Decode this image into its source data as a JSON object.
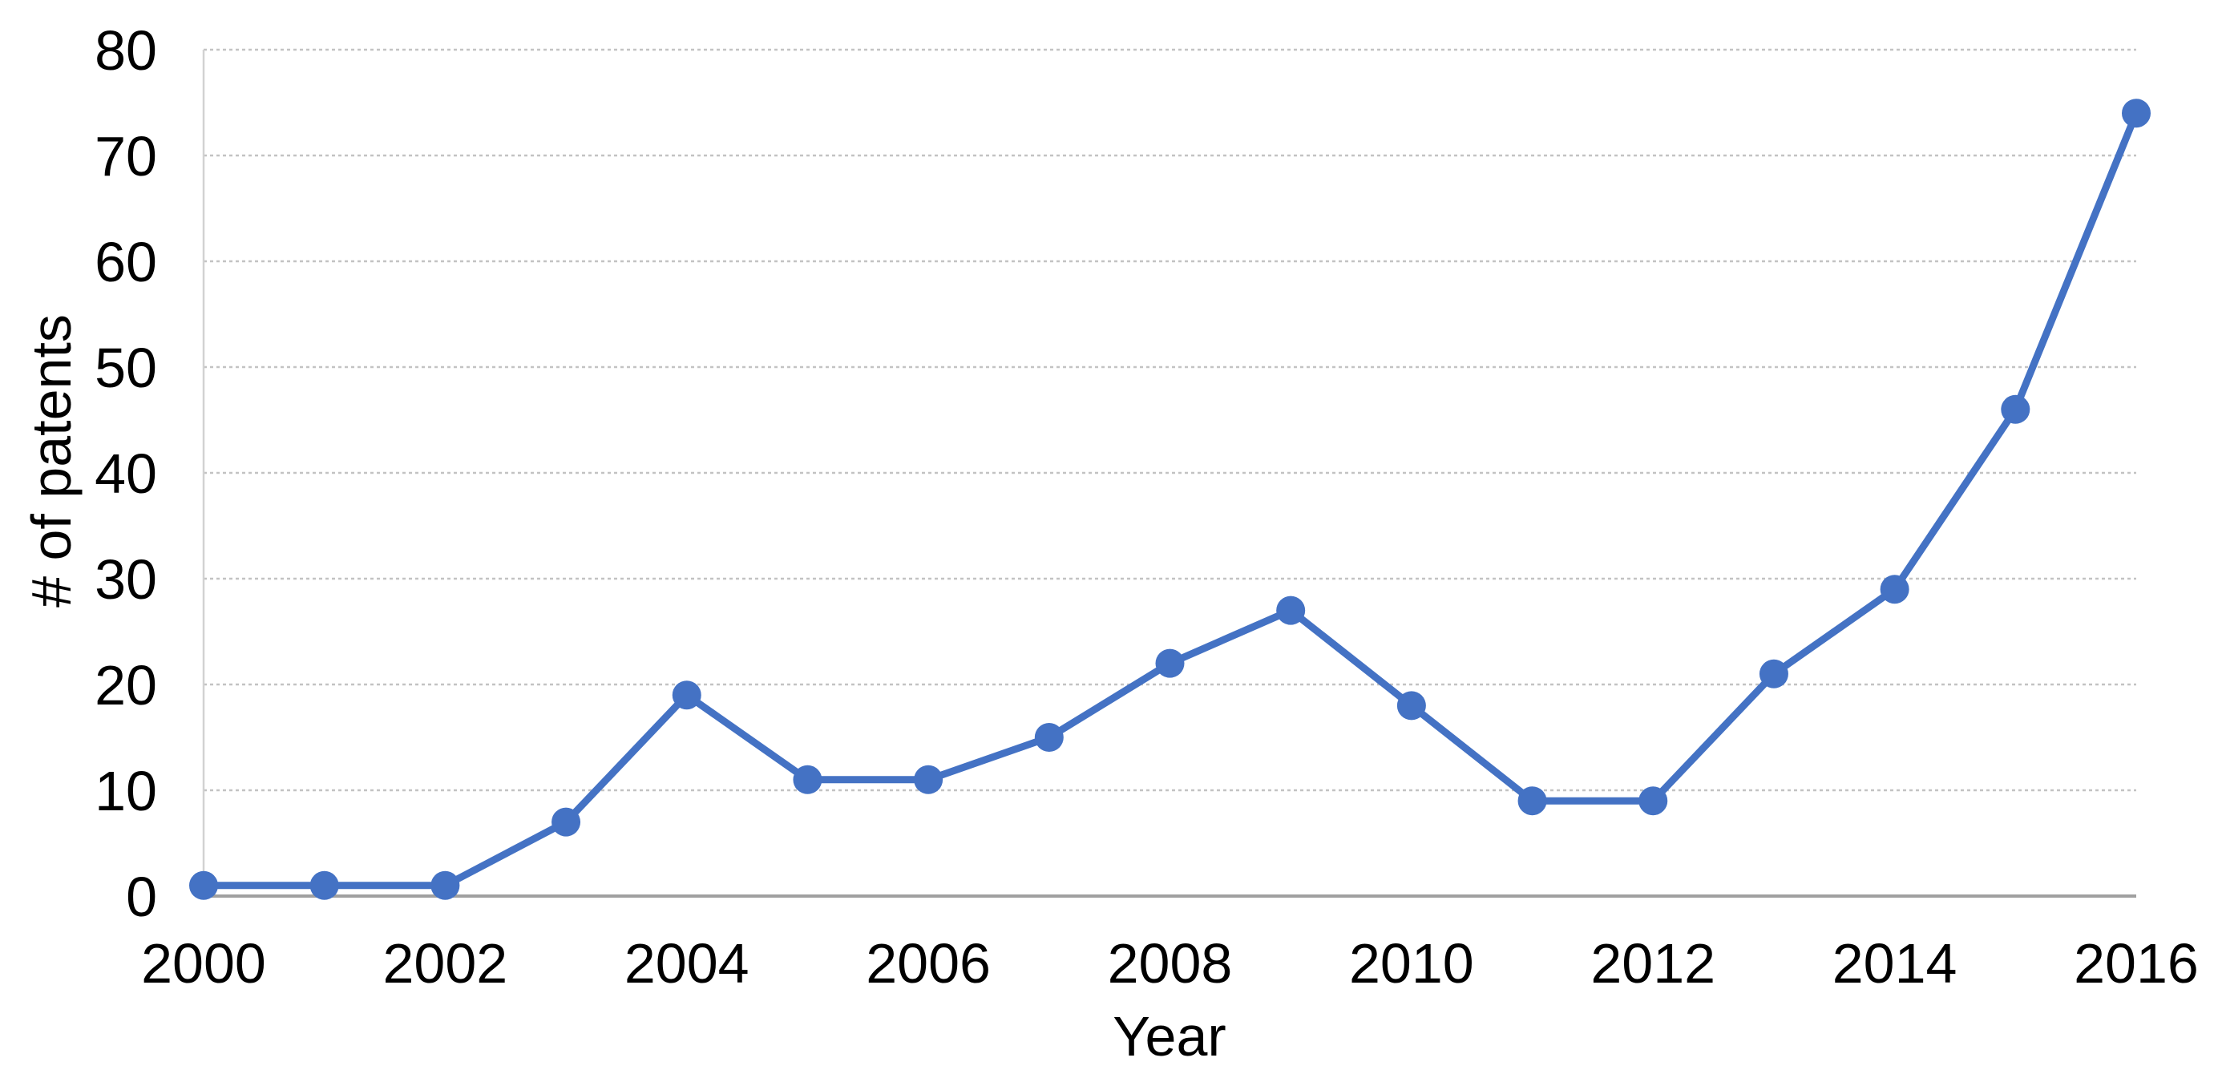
{
  "chart_data": {
    "type": "line",
    "title": "",
    "xlabel": "Year",
    "ylabel": "# of patents",
    "x": [
      2000,
      2001,
      2002,
      2003,
      2004,
      2005,
      2006,
      2007,
      2008,
      2009,
      2010,
      2011,
      2012,
      2013,
      2014,
      2015,
      2016
    ],
    "values": [
      1,
      1,
      1,
      7,
      19,
      11,
      11,
      15,
      22,
      27,
      18,
      9,
      9,
      21,
      29,
      46,
      74
    ],
    "xtick_labels": [
      "2000",
      "2002",
      "2004",
      "2006",
      "2008",
      "2010",
      "2012",
      "2014",
      "2016"
    ],
    "ytick_labels": [
      "0",
      "10",
      "20",
      "30",
      "40",
      "50",
      "60",
      "70",
      "80"
    ],
    "yticks": [
      0,
      10,
      20,
      30,
      40,
      50,
      60,
      70,
      80
    ],
    "ylim": [
      0,
      80
    ],
    "xlim": [
      2000,
      2016
    ],
    "grid": "horizontal-dotted",
    "legend_position": "none",
    "colors": {
      "line": "#4472c4",
      "marker": "#4472c4",
      "gridline": "#c3c3c3",
      "y_axis_line": "#d2d2d2",
      "x_axis_line": "#a0a0a0",
      "text": "#000000",
      "background": "#ffffff"
    }
  }
}
